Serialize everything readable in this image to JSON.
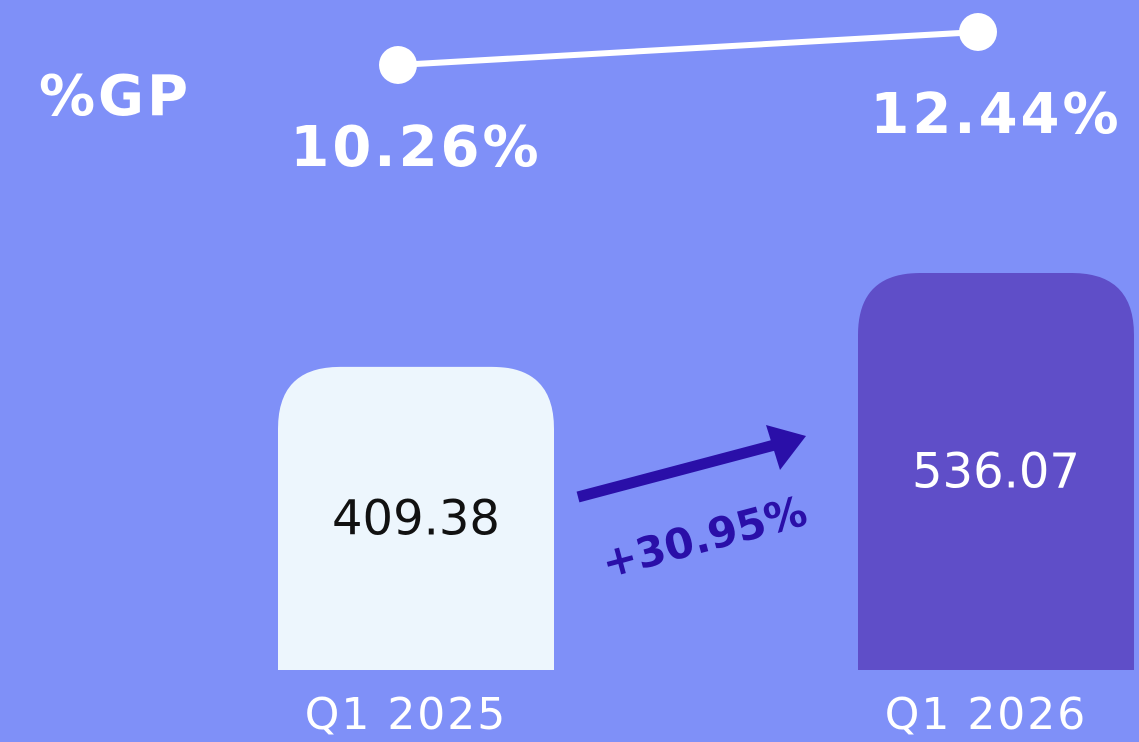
{
  "chart_data": {
    "type": "bar",
    "categories": [
      "Q1 2025",
      "Q1 2026"
    ],
    "values": [
      409.38,
      536.07
    ],
    "colors": [
      "#edf6fd",
      "#5f4ec8"
    ],
    "label_colors": [
      "#111111",
      "#ffffff"
    ],
    "line": {
      "name": "%GP",
      "values": [
        10.26,
        12.44
      ],
      "value_labels": [
        "10.26%",
        "12.44%"
      ],
      "color": "#ffffff"
    },
    "annotations": [
      "+30.95%"
    ]
  }
}
